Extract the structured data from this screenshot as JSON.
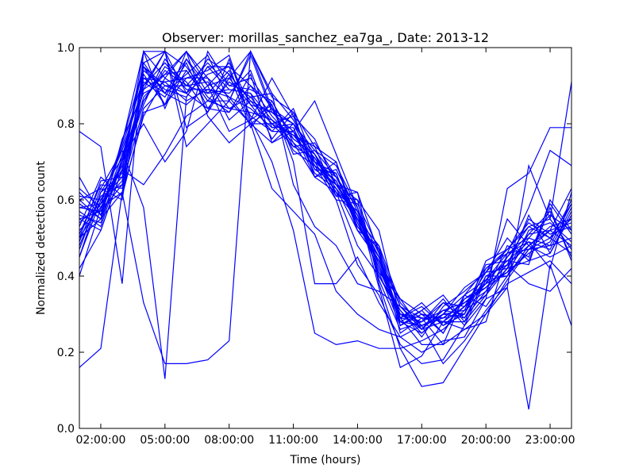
{
  "chart_data": {
    "type": "line",
    "title": "Observer: morillas_sanchez_ea7ga_, Date: 2013-12",
    "xlabel": "Time (hours)",
    "ylabel": "Normalized detection count",
    "xlim": [
      1.0,
      24.0
    ],
    "ylim": [
      0.0,
      1.0
    ],
    "x_ticks": [
      2,
      5,
      8,
      11,
      14,
      17,
      20,
      23
    ],
    "x_tick_labels": [
      "02:00:00",
      "05:00:00",
      "08:00:00",
      "11:00:00",
      "14:00:00",
      "17:00:00",
      "20:00:00",
      "23:00:00"
    ],
    "y_ticks": [
      0.0,
      0.2,
      0.4,
      0.6,
      0.8,
      1.0
    ],
    "y_tick_labels": [
      "0.0",
      "0.2",
      "0.4",
      "0.6",
      "0.8",
      "1.0"
    ],
    "grid": false,
    "line_color": "#0000ff",
    "x": [
      1,
      2,
      3,
      4,
      5,
      6,
      7,
      8,
      9,
      10,
      11,
      12,
      13,
      14,
      15,
      16,
      17,
      18,
      19,
      20,
      21,
      22,
      23,
      24
    ],
    "series": [
      {
        "values": [
          0.16,
          0.21,
          0.62,
          0.33,
          0.17,
          0.17,
          0.18,
          0.23,
          0.99,
          0.88,
          0.64,
          0.53,
          0.48,
          0.38,
          0.36,
          0.32,
          0.29,
          0.22,
          0.35,
          0.32,
          0.4,
          0.48,
          0.52,
          0.54
        ]
      },
      {
        "values": [
          0.45,
          0.6,
          0.73,
          0.58,
          0.13,
          0.87,
          0.95,
          0.95,
          0.9,
          0.85,
          0.7,
          0.38,
          0.38,
          0.45,
          0.33,
          0.24,
          0.27,
          0.17,
          0.23,
          0.31,
          0.38,
          0.41,
          0.44,
          0.38
        ]
      },
      {
        "values": [
          0.78,
          0.74,
          0.38,
          0.99,
          0.99,
          0.74,
          0.8,
          0.86,
          0.8,
          0.63,
          0.57,
          0.51,
          0.36,
          0.3,
          0.26,
          0.24,
          0.2,
          0.23,
          0.24,
          0.34,
          0.37,
          0.69,
          0.55,
          0.91
        ]
      },
      {
        "values": [
          0.5,
          0.55,
          0.62,
          0.82,
          0.92,
          0.99,
          0.82,
          0.75,
          0.8,
          0.75,
          0.8,
          0.72,
          0.64,
          0.55,
          0.45,
          0.28,
          0.25,
          0.3,
          0.35,
          0.42,
          0.47,
          0.54,
          0.5,
          0.55
        ]
      },
      {
        "values": [
          0.4,
          0.58,
          0.7,
          0.96,
          0.88,
          0.93,
          0.98,
          0.86,
          0.98,
          0.83,
          0.78,
          0.66,
          0.62,
          0.48,
          0.4,
          0.3,
          0.26,
          0.28,
          0.32,
          0.38,
          0.55,
          0.48,
          0.45,
          0.48
        ]
      },
      {
        "values": [
          0.55,
          0.52,
          0.68,
          0.99,
          0.84,
          0.97,
          0.88,
          0.94,
          0.82,
          0.78,
          0.84,
          0.7,
          0.66,
          0.56,
          0.41,
          0.34,
          0.3,
          0.29,
          0.33,
          0.37,
          0.43,
          0.38,
          0.36,
          0.42
        ]
      },
      {
        "values": [
          0.6,
          0.63,
          0.6,
          0.95,
          0.85,
          0.99,
          0.9,
          0.78,
          0.81,
          0.92,
          0.82,
          0.76,
          0.64,
          0.6,
          0.52,
          0.29,
          0.22,
          0.22,
          0.26,
          0.3,
          0.39,
          0.47,
          0.5,
          0.59
        ]
      },
      {
        "values": [
          0.66,
          0.56,
          0.75,
          0.95,
          0.9,
          0.9,
          0.96,
          0.9,
          0.89,
          0.86,
          0.75,
          0.66,
          0.7,
          0.52,
          0.48,
          0.27,
          0.31,
          0.35,
          0.28,
          0.4,
          0.4,
          0.47,
          0.52,
          0.63
        ]
      },
      {
        "values": [
          0.52,
          0.58,
          0.62,
          0.9,
          0.99,
          0.88,
          0.93,
          0.95,
          0.8,
          0.8,
          0.77,
          0.7,
          0.61,
          0.62,
          0.38,
          0.21,
          0.23,
          0.26,
          0.31,
          0.35,
          0.42,
          0.44,
          0.58,
          0.44
        ]
      },
      {
        "values": [
          0.58,
          0.59,
          0.65,
          0.93,
          0.85,
          0.94,
          0.86,
          0.86,
          0.99,
          0.87,
          0.83,
          0.74,
          0.7,
          0.54,
          0.44,
          0.3,
          0.28,
          0.33,
          0.29,
          0.36,
          0.42,
          0.56,
          0.46,
          0.57
        ]
      },
      {
        "values": [
          0.5,
          0.65,
          0.66,
          0.89,
          0.93,
          0.99,
          0.92,
          0.87,
          0.8,
          0.84,
          0.74,
          0.75,
          0.66,
          0.55,
          0.48,
          0.33,
          0.27,
          0.3,
          0.37,
          0.41,
          0.47,
          0.5,
          0.48,
          0.5
        ]
      },
      {
        "values": [
          0.55,
          0.57,
          0.74,
          0.92,
          0.88,
          0.85,
          0.9,
          0.96,
          0.85,
          0.83,
          0.8,
          0.69,
          0.64,
          0.62,
          0.46,
          0.27,
          0.3,
          0.25,
          0.35,
          0.39,
          0.44,
          0.43,
          0.6,
          0.52
        ]
      },
      {
        "values": [
          0.62,
          0.56,
          0.72,
          0.86,
          0.95,
          0.91,
          0.83,
          0.92,
          0.85,
          0.78,
          0.78,
          0.71,
          0.62,
          0.57,
          0.42,
          0.29,
          0.33,
          0.27,
          0.3,
          0.44,
          0.47,
          0.53,
          0.55,
          0.47
        ]
      },
      {
        "values": [
          0.48,
          0.61,
          0.64,
          0.84,
          0.9,
          0.88,
          0.97,
          0.93,
          0.86,
          0.8,
          0.82,
          0.68,
          0.67,
          0.52,
          0.44,
          0.34,
          0.26,
          0.31,
          0.33,
          0.38,
          0.41,
          0.46,
          0.49,
          0.6
        ]
      },
      {
        "values": [
          0.57,
          0.53,
          0.7,
          0.89,
          0.99,
          0.95,
          0.87,
          0.83,
          0.9,
          0.82,
          0.76,
          0.72,
          0.6,
          0.59,
          0.47,
          0.25,
          0.29,
          0.28,
          0.28,
          0.35,
          0.45,
          0.51,
          0.57,
          0.45
        ]
      },
      {
        "values": [
          0.53,
          0.66,
          0.61,
          0.83,
          0.85,
          0.92,
          0.94,
          0.98,
          0.81,
          0.85,
          0.72,
          0.73,
          0.69,
          0.58,
          0.4,
          0.31,
          0.24,
          0.32,
          0.36,
          0.41,
          0.5,
          0.44,
          0.46,
          0.56
        ]
      },
      {
        "values": [
          0.59,
          0.55,
          0.76,
          0.88,
          0.91,
          0.86,
          0.89,
          0.88,
          0.94,
          0.79,
          0.79,
          0.67,
          0.63,
          0.56,
          0.43,
          0.28,
          0.31,
          0.25,
          0.34,
          0.37,
          0.43,
          0.55,
          0.51,
          0.53
        ]
      },
      {
        "values": [
          0.47,
          0.62,
          0.67,
          0.91,
          0.87,
          0.96,
          0.84,
          0.91,
          0.87,
          0.88,
          0.81,
          0.7,
          0.65,
          0.53,
          0.45,
          0.32,
          0.27,
          0.29,
          0.3,
          0.42,
          0.46,
          0.49,
          0.42,
          0.62
        ]
      },
      {
        "values": [
          0.63,
          0.58,
          0.69,
          0.85,
          0.97,
          0.9,
          0.91,
          0.84,
          0.83,
          0.81,
          0.77,
          0.74,
          0.61,
          0.6,
          0.39,
          0.26,
          0.28,
          0.34,
          0.27,
          0.39,
          0.4,
          0.52,
          0.54,
          0.49
        ]
      },
      {
        "values": [
          0.51,
          0.64,
          0.63,
          0.94,
          0.89,
          0.87,
          0.95,
          0.89,
          0.88,
          0.76,
          0.83,
          0.66,
          0.68,
          0.57,
          0.46,
          0.29,
          0.32,
          0.27,
          0.32,
          0.36,
          0.48,
          0.45,
          0.59,
          0.51
        ]
      },
      {
        "values": [
          0.56,
          0.54,
          0.71,
          0.8,
          0.7,
          0.78,
          0.99,
          0.9,
          0.92,
          0.84,
          0.73,
          0.69,
          0.65,
          0.54,
          0.42,
          0.31,
          0.25,
          0.3,
          0.31,
          0.43,
          0.44,
          0.49,
          0.47,
          0.58
        ]
      },
      {
        "values": [
          0.61,
          0.6,
          0.66,
          0.87,
          0.93,
          0.94,
          0.86,
          0.93,
          0.79,
          0.86,
          0.76,
          0.72,
          0.62,
          0.55,
          0.41,
          0.27,
          0.3,
          0.28,
          0.34,
          0.38,
          0.45,
          0.53,
          0.5,
          0.46
        ]
      },
      {
        "values": [
          0.54,
          0.59,
          0.68,
          0.64,
          0.72,
          0.82,
          0.86,
          0.84,
          0.87,
          0.8,
          0.74,
          0.71,
          0.63,
          0.52,
          0.44,
          0.29,
          0.28,
          0.31,
          0.3,
          0.4,
          0.43,
          0.48,
          0.53,
          0.55
        ]
      },
      {
        "values": [
          0.49,
          0.63,
          0.73,
          0.9,
          0.96,
          0.89,
          0.89,
          0.87,
          0.84,
          0.79,
          0.8,
          0.73,
          0.66,
          0.58,
          0.43,
          0.3,
          0.29,
          0.29,
          0.33,
          0.37,
          0.41,
          0.5,
          0.56,
          0.52
        ]
      },
      {
        "values": [
          0.58,
          0.57,
          0.64,
          0.92,
          0.91,
          0.92,
          0.92,
          0.81,
          0.86,
          0.83,
          0.78,
          0.68,
          0.64,
          0.56,
          0.45,
          0.28,
          0.27,
          0.3,
          0.29,
          0.39,
          0.46,
          0.47,
          0.48,
          0.59
        ]
      },
      {
        "values": [
          0.6,
          0.55,
          0.7,
          0.86,
          0.94,
          0.9,
          0.88,
          0.89,
          0.88,
          0.81,
          0.75,
          0.7,
          0.67,
          0.53,
          0.47,
          0.32,
          0.26,
          0.33,
          0.32,
          0.41,
          0.42,
          0.51,
          0.52,
          0.48
        ]
      },
      {
        "values": [
          0.45,
          0.62,
          0.71,
          0.95,
          0.88,
          0.97,
          0.9,
          0.92,
          0.99,
          0.84,
          0.8,
          0.69,
          0.6,
          0.43,
          0.35,
          0.22,
          0.17,
          0.18,
          0.27,
          0.34,
          0.63,
          0.67,
          0.79,
          0.79
        ]
      },
      {
        "values": [
          0.5,
          0.59,
          0.75,
          0.99,
          0.92,
          0.88,
          0.84,
          0.83,
          0.93,
          0.75,
          0.78,
          0.86,
          0.72,
          0.58,
          0.37,
          0.16,
          0.19,
          0.28,
          0.26,
          0.28,
          0.46,
          0.58,
          0.73,
          0.69
        ]
      },
      {
        "values": [
          0.42,
          0.52,
          0.68,
          0.96,
          0.99,
          0.79,
          0.83,
          0.97,
          0.81,
          0.7,
          0.52,
          0.25,
          0.22,
          0.23,
          0.21,
          0.21,
          0.11,
          0.12,
          0.21,
          0.3,
          0.37,
          0.05,
          0.43,
          0.27
        ]
      }
    ]
  }
}
